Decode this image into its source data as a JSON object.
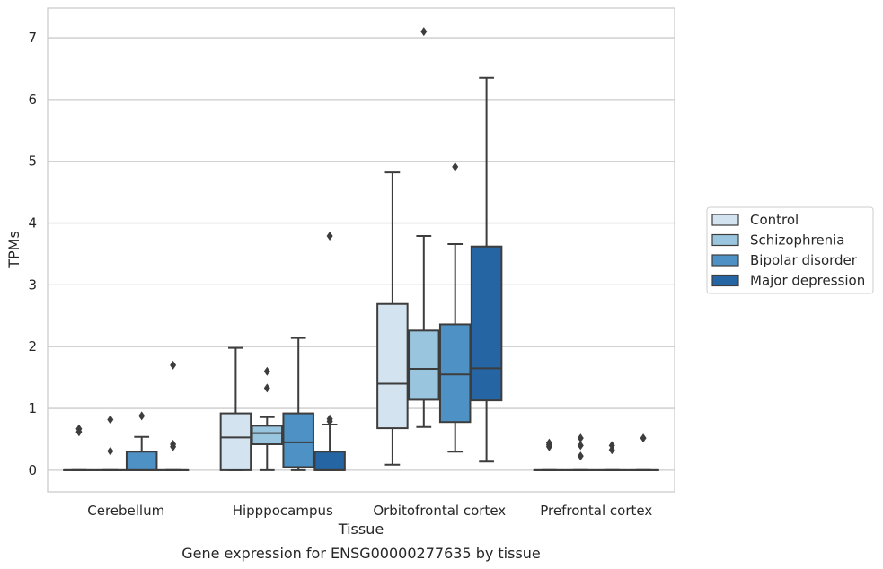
{
  "chart_data": {
    "type": "box",
    "caption": "Gene expression for ENSG00000277635 by tissue",
    "xlabel": "Tissue",
    "ylabel": "TPMs",
    "ylim": [
      -0.35,
      7.48
    ],
    "yticks": [
      0,
      1,
      2,
      3,
      4,
      5,
      6,
      7
    ],
    "grid": "horizontal",
    "legend_position": "right",
    "categories": [
      "Cerebellum",
      "Hipppocampus",
      "Orbitofrontal cortex",
      "Prefrontal cortex"
    ],
    "series": [
      {
        "name": "Control",
        "color": "#d4e3f0",
        "boxes": [
          {
            "category": "Cerebellum",
            "q1": 0,
            "median": 0,
            "q3": 0,
            "whisker_low": 0,
            "whisker_high": 0,
            "outliers": [
              0.62,
              0.67
            ]
          },
          {
            "category": "Hipppocampus",
            "q1": 0,
            "median": 0.53,
            "q3": 0.92,
            "whisker_low": 0,
            "whisker_high": 1.98,
            "outliers": []
          },
          {
            "category": "Orbitofrontal cortex",
            "q1": 0.68,
            "median": 1.4,
            "q3": 2.69,
            "whisker_low": 0.09,
            "whisker_high": 4.82,
            "outliers": []
          },
          {
            "category": "Prefrontal cortex",
            "q1": 0,
            "median": 0,
            "q3": 0,
            "whisker_low": 0,
            "whisker_high": 0,
            "outliers": [
              0.38,
              0.41,
              0.44
            ]
          }
        ]
      },
      {
        "name": "Schizophrenia",
        "color": "#9ac5de",
        "boxes": [
          {
            "category": "Cerebellum",
            "q1": 0,
            "median": 0,
            "q3": 0,
            "whisker_low": 0,
            "whisker_high": 0,
            "outliers": [
              0.31,
              0.82
            ]
          },
          {
            "category": "Hipppocampus",
            "q1": 0.42,
            "median": 0.6,
            "q3": 0.72,
            "whisker_low": 0,
            "whisker_high": 0.86,
            "outliers": [
              1.33,
              1.6
            ]
          },
          {
            "category": "Orbitofrontal cortex",
            "q1": 1.14,
            "median": 1.64,
            "q3": 2.26,
            "whisker_low": 0.7,
            "whisker_high": 3.79,
            "outliers": [
              7.1
            ]
          },
          {
            "category": "Prefrontal cortex",
            "q1": 0,
            "median": 0,
            "q3": 0,
            "whisker_low": 0,
            "whisker_high": 0,
            "outliers": [
              0.23,
              0.4,
              0.52
            ]
          }
        ]
      },
      {
        "name": "Bipolar disorder",
        "color": "#4e91c4",
        "boxes": [
          {
            "category": "Cerebellum",
            "q1": 0,
            "median": 0,
            "q3": 0.3,
            "whisker_low": 0,
            "whisker_high": 0.54,
            "outliers": [
              0.88
            ]
          },
          {
            "category": "Hipppocampus",
            "q1": 0.05,
            "median": 0.45,
            "q3": 0.92,
            "whisker_low": 0,
            "whisker_high": 2.14,
            "outliers": []
          },
          {
            "category": "Orbitofrontal cortex",
            "q1": 0.78,
            "median": 1.55,
            "q3": 2.36,
            "whisker_low": 0.3,
            "whisker_high": 3.66,
            "outliers": [
              4.91
            ]
          },
          {
            "category": "Prefrontal cortex",
            "q1": 0,
            "median": 0,
            "q3": 0,
            "whisker_low": 0,
            "whisker_high": 0,
            "outliers": [
              0.33,
              0.4
            ]
          }
        ]
      },
      {
        "name": "Major depression",
        "color": "#2565a3",
        "boxes": [
          {
            "category": "Cerebellum",
            "q1": 0,
            "median": 0,
            "q3": 0,
            "whisker_low": 0,
            "whisker_high": 0,
            "outliers": [
              0.38,
              0.42,
              1.7
            ]
          },
          {
            "category": "Hipppocampus",
            "q1": 0,
            "median": 0,
            "q3": 0.3,
            "whisker_low": 0,
            "whisker_high": 0.74,
            "outliers": [
              0.79,
              0.83,
              3.79
            ]
          },
          {
            "category": "Orbitofrontal cortex",
            "q1": 1.13,
            "median": 1.65,
            "q3": 3.62,
            "whisker_low": 0.14,
            "whisker_high": 6.35,
            "outliers": []
          },
          {
            "category": "Prefrontal cortex",
            "q1": 0,
            "median": 0,
            "q3": 0,
            "whisker_low": 0,
            "whisker_high": 0,
            "outliers": [
              0.52
            ]
          }
        ]
      }
    ]
  }
}
